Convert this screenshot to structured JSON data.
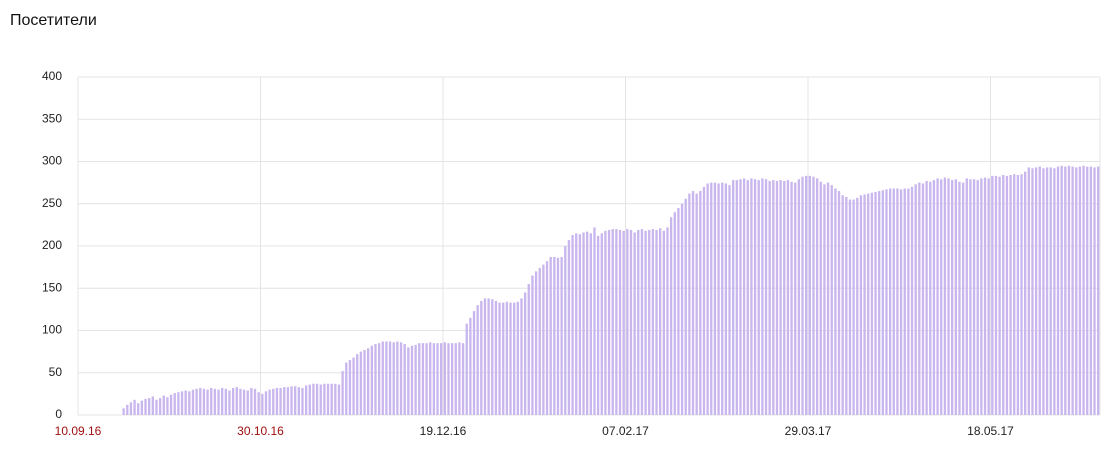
{
  "chart_data": {
    "type": "bar",
    "title": "Посетители",
    "color": "#c9b6ee",
    "grid": true,
    "ylim": [
      0,
      400
    ],
    "yticks": [
      0,
      50,
      100,
      150,
      200,
      250,
      300,
      350,
      400
    ],
    "categories": [
      "10.09.16",
      null,
      null,
      null,
      null,
      null,
      null,
      null,
      null,
      null,
      null,
      null,
      null,
      null,
      null,
      null,
      null,
      null,
      null,
      null,
      null,
      null,
      null,
      null,
      null,
      null,
      null,
      null,
      null,
      null,
      null,
      null,
      null,
      null,
      null,
      null,
      null,
      null,
      null,
      null,
      null,
      null,
      null,
      null,
      null,
      null,
      null,
      null,
      null,
      null,
      "30.10.16",
      null,
      null,
      null,
      null,
      null,
      null,
      null,
      null,
      null,
      null,
      null,
      null,
      null,
      null,
      null,
      null,
      null,
      null,
      null,
      null,
      null,
      null,
      null,
      null,
      null,
      null,
      null,
      null,
      null,
      null,
      null,
      null,
      null,
      null,
      null,
      null,
      null,
      null,
      null,
      null,
      null,
      null,
      null,
      null,
      null,
      null,
      null,
      null,
      null,
      "19.12.16",
      null,
      null,
      null,
      null,
      null,
      null,
      null,
      null,
      null,
      null,
      null,
      null,
      null,
      null,
      null,
      null,
      null,
      null,
      null,
      null,
      null,
      null,
      null,
      null,
      null,
      null,
      null,
      null,
      null,
      null,
      null,
      null,
      null,
      null,
      null,
      null,
      null,
      null,
      null,
      null,
      null,
      null,
      null,
      null,
      null,
      null,
      null,
      null,
      null,
      "07.02.17",
      null,
      null,
      null,
      null,
      null,
      null,
      null,
      null,
      null,
      null,
      null,
      null,
      null,
      null,
      null,
      null,
      null,
      null,
      null,
      null,
      null,
      null,
      null,
      null,
      null,
      null,
      null,
      null,
      null,
      null,
      null,
      null,
      null,
      null,
      null,
      null,
      null,
      null,
      null,
      null,
      null,
      null,
      null,
      null,
      null,
      null,
      null,
      null,
      null,
      "29.03.17",
      null,
      null,
      null,
      null,
      null,
      null,
      null,
      null,
      null,
      null,
      null,
      null,
      null,
      null,
      null,
      null,
      null,
      null,
      null,
      null,
      null,
      null,
      null,
      null,
      null,
      null,
      null,
      null,
      null,
      null,
      null,
      null,
      null,
      null,
      null,
      null,
      null,
      null,
      null,
      null,
      null,
      null,
      null,
      null,
      null,
      null,
      null,
      null,
      null,
      "18.05.17",
      null,
      null,
      null,
      null,
      null,
      null,
      null,
      null,
      null,
      null,
      null,
      null,
      null,
      null,
      null,
      null,
      null,
      null,
      null,
      null,
      null,
      null,
      null,
      null,
      null,
      null,
      null,
      null,
      null
    ],
    "values": [
      0,
      0,
      0,
      0,
      0,
      0,
      0,
      0,
      0,
      0,
      0,
      0,
      8,
      12,
      15,
      18,
      14,
      17,
      19,
      20,
      22,
      18,
      20,
      23,
      21,
      24,
      26,
      27,
      28,
      29,
      28,
      30,
      31,
      32,
      31,
      30,
      32,
      31,
      30,
      32,
      31,
      29,
      32,
      33,
      31,
      30,
      29,
      32,
      31,
      27,
      25,
      28,
      30,
      31,
      32,
      32,
      33,
      33,
      34,
      34,
      33,
      32,
      35,
      36,
      37,
      37,
      36,
      37,
      37,
      37,
      37,
      36,
      52,
      62,
      65,
      68,
      72,
      75,
      77,
      79,
      82,
      84,
      85,
      87,
      87,
      87,
      86,
      87,
      86,
      84,
      80,
      82,
      83,
      85,
      85,
      85,
      86,
      85,
      85,
      85,
      86,
      85,
      85,
      85,
      86,
      85,
      108,
      115,
      123,
      130,
      135,
      138,
      138,
      137,
      135,
      133,
      133,
      134,
      133,
      133,
      134,
      138,
      145,
      155,
      165,
      170,
      174,
      178,
      182,
      187,
      187,
      186,
      187,
      200,
      207,
      213,
      215,
      214,
      216,
      217,
      215,
      222,
      212,
      215,
      218,
      219,
      220,
      220,
      219,
      218,
      220,
      219,
      216,
      219,
      220,
      218,
      219,
      220,
      219,
      221,
      218,
      222,
      234,
      240,
      245,
      250,
      256,
      262,
      265,
      262,
      265,
      270,
      274,
      275,
      275,
      274,
      275,
      274,
      272,
      278,
      278,
      279,
      280,
      278,
      280,
      279,
      278,
      280,
      279,
      277,
      278,
      277,
      278,
      277,
      278,
      276,
      275,
      279,
      282,
      283,
      283,
      282,
      280,
      276,
      273,
      275,
      272,
      268,
      265,
      260,
      258,
      255,
      255,
      257,
      260,
      261,
      262,
      263,
      264,
      265,
      266,
      267,
      268,
      268,
      268,
      267,
      268,
      268,
      270,
      273,
      275,
      274,
      277,
      276,
      278,
      280,
      279,
      281,
      280,
      278,
      279,
      276,
      275,
      280,
      279,
      279,
      278,
      280,
      281,
      280,
      283,
      283,
      282,
      284,
      283,
      284,
      285,
      284,
      285,
      288,
      293,
      292,
      293,
      294,
      292,
      293,
      293,
      292,
      294,
      295,
      294,
      295,
      294,
      293,
      294,
      295,
      294,
      294,
      293,
      294
    ]
  }
}
